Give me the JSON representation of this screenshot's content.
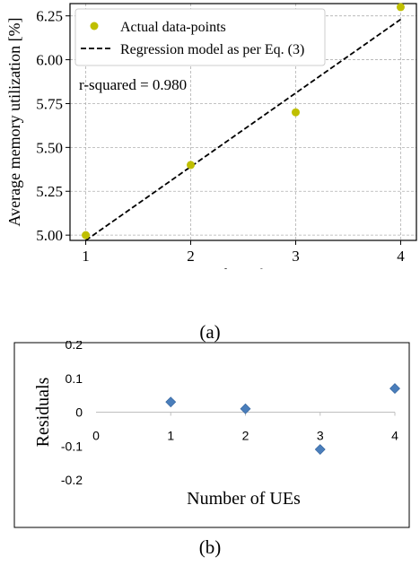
{
  "chart_data": [
    {
      "type": "scatter",
      "caption": "(a)",
      "xlabel": "Number of UEs",
      "ylabel": "Average memory utilization [%]",
      "xlim": [
        0.85,
        4.15
      ],
      "ylim": [
        4.97,
        6.32
      ],
      "xticks": [
        1,
        2,
        3,
        4
      ],
      "xtick_labels": [
        "1",
        "2",
        "3",
        "4"
      ],
      "yticks": [
        5.0,
        5.25,
        5.5,
        5.75,
        6.0,
        6.25
      ],
      "ytick_labels": [
        "5.00",
        "5.25",
        "5.50",
        "5.75",
        "6.00",
        "6.25"
      ],
      "grid": true,
      "legend_position": "top-left",
      "series": [
        {
          "name": "Actual data-points",
          "kind": "scatter",
          "color": "#bfbf00",
          "x": [
            1,
            2,
            3,
            4
          ],
          "y": [
            5.0,
            5.4,
            5.7,
            6.3
          ]
        },
        {
          "name": "Regression model as per Eq. (3)",
          "kind": "line",
          "style": "dashed",
          "color": "#000000",
          "x": [
            1,
            4
          ],
          "y": [
            4.97,
            6.23
          ]
        }
      ],
      "annotation": "r-squared = 0.980"
    },
    {
      "type": "scatter",
      "caption": "(b)",
      "xlabel": "Number of UEs",
      "ylabel": "Residuals",
      "xlim": [
        0,
        4
      ],
      "ylim": [
        -0.2,
        0.2
      ],
      "xticks": [
        0,
        1,
        2,
        3,
        4
      ],
      "xtick_labels": [
        "0",
        "1",
        "2",
        "3",
        "4"
      ],
      "yticks": [
        0.2,
        0.1,
        0,
        -0.1,
        -0.2
      ],
      "ytick_labels": [
        "0.2",
        "0.1",
        "0",
        "-0.1",
        "-0.2"
      ],
      "grid": false,
      "series": [
        {
          "kind": "scatter",
          "marker": "diamond",
          "color": "#4a7ebb",
          "x": [
            1,
            2,
            3,
            4
          ],
          "y": [
            0.03,
            0.01,
            -0.11,
            0.07
          ]
        }
      ]
    }
  ]
}
